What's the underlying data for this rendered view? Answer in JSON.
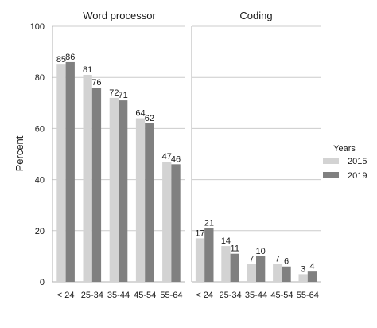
{
  "chart_data": [
    {
      "type": "bar",
      "title": "Word processor",
      "categories": [
        "< 24",
        "25-34",
        "35-44",
        "45-54",
        "55-64"
      ],
      "series": [
        {
          "name": "2015",
          "values": [
            85,
            81,
            72,
            64,
            47
          ]
        },
        {
          "name": "2019",
          "values": [
            86,
            76,
            71,
            62,
            46
          ]
        }
      ],
      "ylabel": "Percent",
      "ylim": [
        0,
        100
      ],
      "yticks": [
        0,
        20,
        40,
        60,
        80,
        100
      ],
      "grid": "horizontal"
    },
    {
      "type": "bar",
      "title": "Coding",
      "categories": [
        "< 24",
        "25-34",
        "35-44",
        "45-54",
        "55-64"
      ],
      "series": [
        {
          "name": "2015",
          "values": [
            17,
            14,
            7,
            7,
            3
          ]
        },
        {
          "name": "2019",
          "values": [
            21,
            11,
            10,
            6,
            4
          ]
        }
      ],
      "ylim": [
        0,
        100
      ],
      "grid": "horizontal"
    }
  ],
  "legend": {
    "title": "Years",
    "placement": "right",
    "entries": [
      "2015",
      "2019"
    ]
  },
  "colors": {
    "2015": "#d3d3d3",
    "2019": "#808080",
    "grid": "#cccccc",
    "axis": "#b0b0b0"
  }
}
